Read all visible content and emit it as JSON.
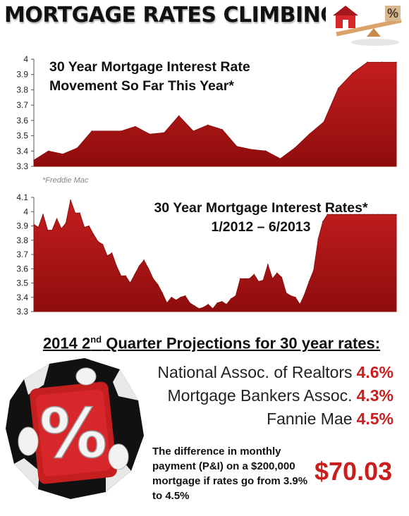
{
  "header": {
    "title": "MORTGAGE RATES CLIMBING",
    "logo_icon": "house-percent-seesaw-icon"
  },
  "colors": {
    "series_fill": "#c41e1e",
    "series_dark": "#8f0d0d",
    "highlight": "#c81e1e",
    "axis": "#555555"
  },
  "chart_data": [
    {
      "type": "area",
      "title_lines": [
        "30 Year Mortgage Interest Rate",
        "Movement So Far This Year*"
      ],
      "source_note": "*Freddie Mac",
      "xlabel": "",
      "ylabel": "",
      "ylim": [
        3.3,
        4.0
      ],
      "yticks": [
        3.3,
        3.4,
        3.5,
        3.6,
        3.7,
        3.8,
        3.9,
        4
      ],
      "grid": false,
      "x": [
        0,
        1,
        2,
        3,
        4,
        5,
        6,
        7,
        8,
        9,
        10,
        11,
        12,
        13,
        14,
        15,
        16,
        17,
        18,
        19,
        20,
        21,
        22,
        23,
        24,
        25
      ],
      "values": [
        3.34,
        3.4,
        3.38,
        3.42,
        3.53,
        3.53,
        3.53,
        3.56,
        3.51,
        3.52,
        3.63,
        3.53,
        3.57,
        3.54,
        3.43,
        3.41,
        3.4,
        3.35,
        3.42,
        3.51,
        3.59,
        3.81,
        3.91,
        3.98,
        3.98,
        3.98
      ]
    },
    {
      "type": "area",
      "title_lines": [
        "30 Year Mortgage Interest Rates*",
        "1/2012 – 6/2013"
      ],
      "xlabel": "",
      "ylabel": "",
      "ylim": [
        3.3,
        4.1
      ],
      "yticks": [
        3.3,
        3.4,
        3.5,
        3.6,
        3.7,
        3.8,
        3.9,
        4,
        4.1
      ],
      "grid": false,
      "x": [
        0,
        1,
        2,
        3,
        4,
        5,
        6,
        7,
        8,
        9,
        10,
        11,
        12,
        13,
        14,
        15,
        16,
        17,
        18,
        19,
        20,
        21,
        22,
        23,
        24,
        25,
        26,
        27,
        28,
        29,
        30,
        31,
        32,
        33,
        34,
        35,
        36,
        37,
        38,
        39,
        40,
        41,
        42,
        43,
        44,
        45,
        46,
        47,
        48,
        49,
        50,
        51,
        52,
        53,
        54,
        55,
        56,
        57,
        58,
        59,
        60,
        61,
        62,
        63,
        64,
        65,
        66,
        67,
        68,
        69,
        70,
        71,
        72,
        73,
        74,
        75,
        76,
        77,
        78,
        79
      ],
      "values": [
        3.91,
        3.89,
        3.98,
        3.87,
        3.87,
        3.95,
        3.88,
        3.92,
        4.08,
        3.99,
        3.99,
        3.89,
        3.9,
        3.84,
        3.79,
        3.77,
        3.69,
        3.71,
        3.62,
        3.55,
        3.55,
        3.5,
        3.56,
        3.62,
        3.66,
        3.6,
        3.53,
        3.49,
        3.43,
        3.36,
        3.4,
        3.38,
        3.4,
        3.41,
        3.36,
        3.34,
        3.32,
        3.33,
        3.35,
        3.32,
        3.36,
        3.37,
        3.35,
        3.39,
        3.41,
        3.53,
        3.53,
        3.53,
        3.56,
        3.51,
        3.52,
        3.63,
        3.53,
        3.57,
        3.54,
        3.43,
        3.41,
        3.4,
        3.35,
        3.42,
        3.51,
        3.59,
        3.81,
        3.93,
        3.98,
        3.98,
        3.98,
        3.98,
        3.98,
        3.98,
        3.98,
        3.98,
        3.98,
        3.98,
        3.98,
        3.98,
        3.98,
        3.98,
        3.98,
        3.98
      ]
    }
  ],
  "projections": {
    "heading_main": "2014 2",
    "heading_sup": "nd",
    "heading_rest": " Quarter Projections for 30 year rates:",
    "items": [
      {
        "label": "National Assoc. of Realtors",
        "value": "4.6%"
      },
      {
        "label": "Mortgage Bankers Assoc.",
        "value": "4.3%"
      },
      {
        "label": "Fannie Mae",
        "value": "4.5%"
      }
    ]
  },
  "difference": {
    "text": "The difference in monthly payment (P&I) on a $200,000  mortgage if rates go from 3.9% to 4.5%",
    "amount": "$70.03"
  },
  "art": {
    "percent_card_icon": "percent-sign-breaking-through-paper-icon",
    "percent_glyph": "%"
  }
}
